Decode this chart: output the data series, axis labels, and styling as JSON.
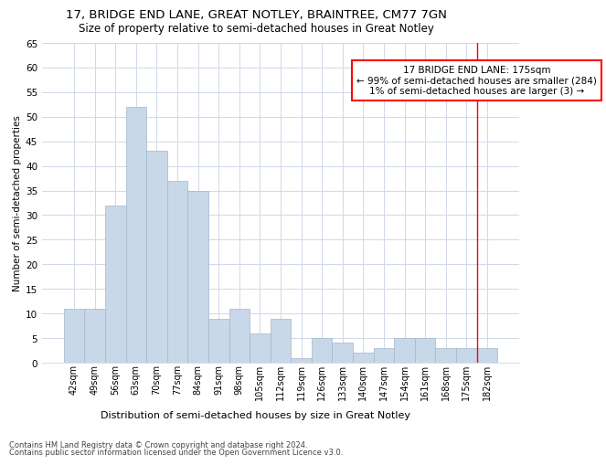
{
  "title": "17, BRIDGE END LANE, GREAT NOTLEY, BRAINTREE, CM77 7GN",
  "subtitle": "Size of property relative to semi-detached houses in Great Notley",
  "xlabel_bottom": "Distribution of semi-detached houses by size in Great Notley",
  "ylabel": "Number of semi-detached properties",
  "footer1": "Contains HM Land Registry data © Crown copyright and database right 2024.",
  "footer2": "Contains public sector information licensed under the Open Government Licence v3.0.",
  "bar_labels": [
    "42sqm",
    "49sqm",
    "56sqm",
    "63sqm",
    "70sqm",
    "77sqm",
    "84sqm",
    "91sqm",
    "98sqm",
    "105sqm",
    "112sqm",
    "119sqm",
    "126sqm",
    "133sqm",
    "140sqm",
    "147sqm",
    "154sqm",
    "161sqm",
    "168sqm",
    "175sqm",
    "182sqm"
  ],
  "bar_values": [
    11,
    11,
    32,
    52,
    43,
    37,
    35,
    9,
    11,
    6,
    9,
    1,
    5,
    4,
    2,
    3,
    5,
    5,
    3,
    3,
    3
  ],
  "bar_color": "#c8d8e8",
  "bar_edge_color": "#a0b8cc",
  "highlight_index": 19,
  "highlight_color": "#ff0000",
  "annotation_text": "17 BRIDGE END LANE: 175sqm\n← 99% of semi-detached houses are smaller (284)\n1% of semi-detached houses are larger (3) →",
  "annotation_box_color": "#ffffff",
  "annotation_box_edge": "#ff0000",
  "ylim": [
    0,
    65
  ],
  "yticks": [
    0,
    5,
    10,
    15,
    20,
    25,
    30,
    35,
    40,
    45,
    50,
    55,
    60,
    65
  ],
  "grid_color": "#d0d8e8",
  "background_color": "#ffffff",
  "title_fontsize": 9.5,
  "subtitle_fontsize": 8.5
}
